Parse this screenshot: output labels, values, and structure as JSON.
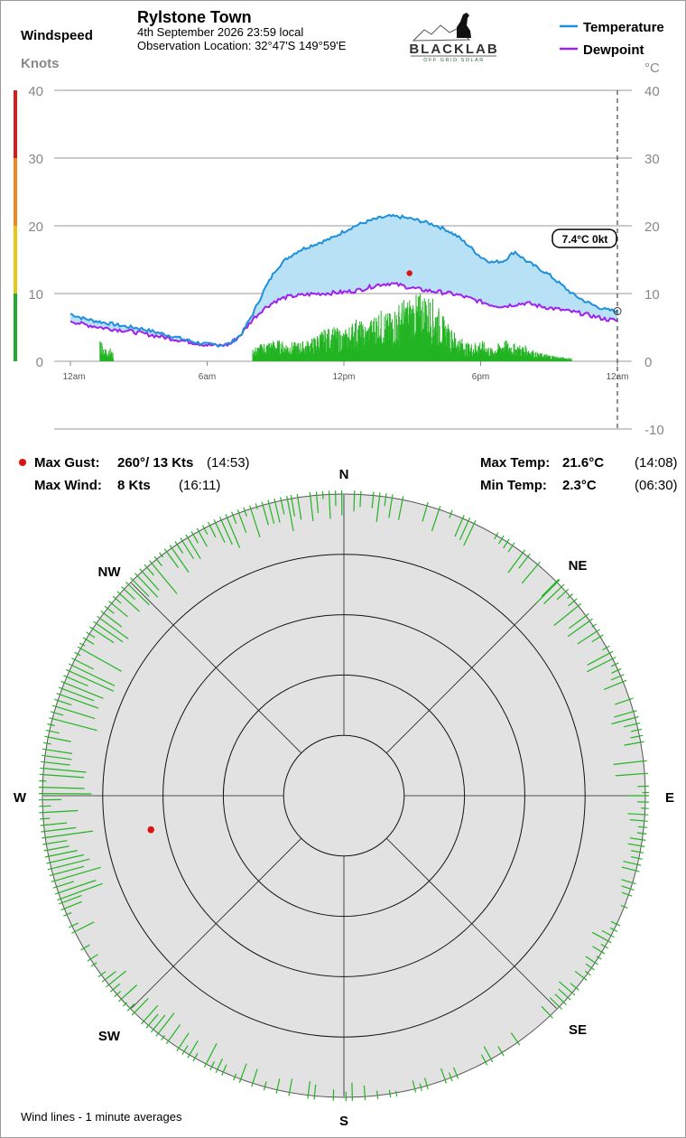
{
  "header": {
    "station_name": "Rylstone Town",
    "date_line": "4th September 2026  23:59 local",
    "location_line": "Observation Location: 32°47'S 149°59'E",
    "logo_text": "BLACKLAB",
    "logo_subtext": "OFF GRID SOLAR"
  },
  "chart_data": [
    {
      "type": "line",
      "xlabel": "",
      "left_axis_title": "Windspeed",
      "left_axis_unit": "Knots",
      "right_axis_unit": "°C",
      "x_ticks": [
        "12am",
        "6am",
        "12pm",
        "6pm",
        "12am"
      ],
      "x_range_hours": [
        0,
        24
      ],
      "wind_ylim": [
        0,
        40
      ],
      "wind_yticks": [
        0,
        10,
        20,
        30,
        40
      ],
      "temp_ylim": [
        -10,
        40
      ],
      "temp_yticks": [
        -10,
        0,
        10,
        20,
        30,
        40
      ],
      "legend": [
        "Temperature",
        "Dewpoint"
      ],
      "legend_position": "top-right",
      "grid": true,
      "colors": {
        "temperature": "#1e90dc",
        "dewpoint": "#a020f0",
        "spread_fill": "#b9e1f6",
        "wind": "#22b422",
        "gust_marker": "#dd1111"
      },
      "wind_scale_bands": [
        {
          "from": 0,
          "to": 10,
          "color": "#22aa33"
        },
        {
          "from": 10,
          "to": 20,
          "color": "#e6c619"
        },
        {
          "from": 20,
          "to": 30,
          "color": "#ee8822"
        },
        {
          "from": 30,
          "to": 40,
          "color": "#d81b1b"
        }
      ],
      "series": [
        {
          "name": "Temperature",
          "unit": "°C",
          "x_hours": [
            0,
            0.5,
            1,
            1.5,
            2,
            2.5,
            3,
            3.5,
            4,
            4.5,
            5,
            5.5,
            6,
            6.5,
            7,
            7.5,
            8,
            8.5,
            9,
            9.5,
            10,
            10.5,
            11,
            11.5,
            12,
            12.5,
            13,
            13.5,
            14,
            14.5,
            15,
            15.5,
            16,
            16.5,
            17,
            17.5,
            18,
            18.5,
            19,
            19.5,
            20,
            20.5,
            21,
            21.5,
            22,
            22.5,
            23,
            23.5,
            24
          ],
          "values": [
            7.0,
            6.4,
            6.0,
            5.7,
            5.4,
            5.1,
            4.9,
            4.5,
            4.1,
            3.7,
            3.2,
            2.8,
            2.5,
            2.4,
            2.6,
            4.0,
            7.0,
            10.5,
            13.5,
            15.2,
            16.3,
            17.0,
            17.6,
            18.2,
            19.2,
            20.0,
            20.6,
            21.1,
            21.4,
            21.3,
            21.0,
            20.6,
            20.1,
            19.4,
            18.4,
            17.0,
            15.4,
            14.6,
            14.8,
            16.2,
            14.8,
            13.8,
            12.8,
            11.4,
            10.0,
            9.0,
            8.2,
            7.6,
            7.4
          ]
        },
        {
          "name": "Dewpoint",
          "unit": "°C",
          "x_hours": [
            0,
            0.5,
            1,
            1.5,
            2,
            2.5,
            3,
            3.5,
            4,
            4.5,
            5,
            5.5,
            6,
            6.5,
            7,
            7.5,
            8,
            8.5,
            9,
            9.5,
            10,
            10.5,
            11,
            11.5,
            12,
            12.5,
            13,
            13.5,
            14,
            14.5,
            15,
            15.5,
            16,
            16.5,
            17,
            17.5,
            18,
            18.5,
            19,
            19.5,
            20,
            20.5,
            21,
            21.5,
            22,
            22.5,
            23,
            23.5,
            24
          ],
          "values": [
            6.0,
            5.5,
            5.2,
            4.9,
            4.7,
            4.5,
            4.2,
            3.9,
            3.6,
            3.3,
            3.0,
            2.7,
            2.4,
            2.3,
            2.5,
            4.0,
            6.2,
            7.8,
            8.9,
            9.5,
            9.7,
            9.9,
            10.0,
            10.1,
            10.2,
            10.4,
            10.8,
            11.3,
            11.5,
            11.2,
            10.8,
            10.5,
            10.3,
            10.1,
            9.8,
            9.3,
            8.8,
            8.3,
            8.1,
            8.4,
            8.6,
            8.2,
            7.9,
            7.6,
            7.3,
            7.0,
            6.6,
            6.2,
            6.0
          ]
        },
        {
          "name": "Wind",
          "unit": "kt",
          "x_hours": [
            1.3,
            1.5,
            1.7,
            1.9,
            8.0,
            8.5,
            9.0,
            9.5,
            10.0,
            10.5,
            11.0,
            11.5,
            12.0,
            12.5,
            13.0,
            13.5,
            14.0,
            14.5,
            15.0,
            15.5,
            16.0,
            16.5,
            17.0,
            17.5,
            18.0,
            18.5,
            19.0,
            19.5,
            20.0,
            20.5,
            21.0,
            21.5,
            22.0
          ],
          "values": [
            3.0,
            1.5,
            1.8,
            0.8,
            1.5,
            2.2,
            2.5,
            2.2,
            2.2,
            2.5,
            3.5,
            4.0,
            3.5,
            5.0,
            4.2,
            6.0,
            5.5,
            7.0,
            7.5,
            8.0,
            7.0,
            4.5,
            3.0,
            2.0,
            2.5,
            1.5,
            2.5,
            2.0,
            1.8,
            1.0,
            0.8,
            0.5,
            0.4
          ]
        }
      ],
      "max_gust_marker": {
        "x_hours": 14.88,
        "value": 13
      },
      "current_readout": {
        "label": "7.4°C  0kt",
        "x_hours": 24,
        "temperature": 7.4
      }
    },
    {
      "type": "scatter",
      "chart": "wind-rose",
      "compass_labels": [
        "N",
        "NE",
        "E",
        "SE",
        "S",
        "SW",
        "W",
        "NW"
      ],
      "ring_count": 5,
      "rim_ticks": {
        "description": "1-minute average wind direction ticks around the rim; length proportional to frequency",
        "sectors": [
          {
            "from_deg": 350,
            "to_deg": 10,
            "density": 0.6,
            "strength": 0.5
          },
          {
            "from_deg": 10,
            "to_deg": 45,
            "density": 0.55,
            "strength": 0.45
          },
          {
            "from_deg": 45,
            "to_deg": 90,
            "density": 0.8,
            "strength": 0.55
          },
          {
            "from_deg": 90,
            "to_deg": 140,
            "density": 0.75,
            "strength": 0.35
          },
          {
            "from_deg": 140,
            "to_deg": 200,
            "density": 0.35,
            "strength": 0.25
          },
          {
            "from_deg": 200,
            "to_deg": 250,
            "density": 0.75,
            "strength": 0.45
          },
          {
            "from_deg": 250,
            "to_deg": 300,
            "density": 1.0,
            "strength": 0.9
          },
          {
            "from_deg": 300,
            "to_deg": 350,
            "density": 1.0,
            "strength": 0.7
          }
        ]
      },
      "gust_marker": {
        "direction_deg": 260,
        "speed_kt": 13
      },
      "footnote": "Wind lines - 1 minute averages"
    }
  ],
  "stats": {
    "max_gust_label": "Max Gust:",
    "max_gust_value": "260°/ 13 Kts",
    "max_gust_time": "(14:53)",
    "max_wind_label": "Max Wind:",
    "max_wind_value": "8 Kts",
    "max_wind_time": "(16:11)",
    "max_temp_label": "Max Temp:",
    "max_temp_value": "21.6°C",
    "max_temp_time": "(14:08)",
    "min_temp_label": "Min Temp:",
    "min_temp_value": "2.3°C",
    "min_temp_time": "(06:30)"
  }
}
